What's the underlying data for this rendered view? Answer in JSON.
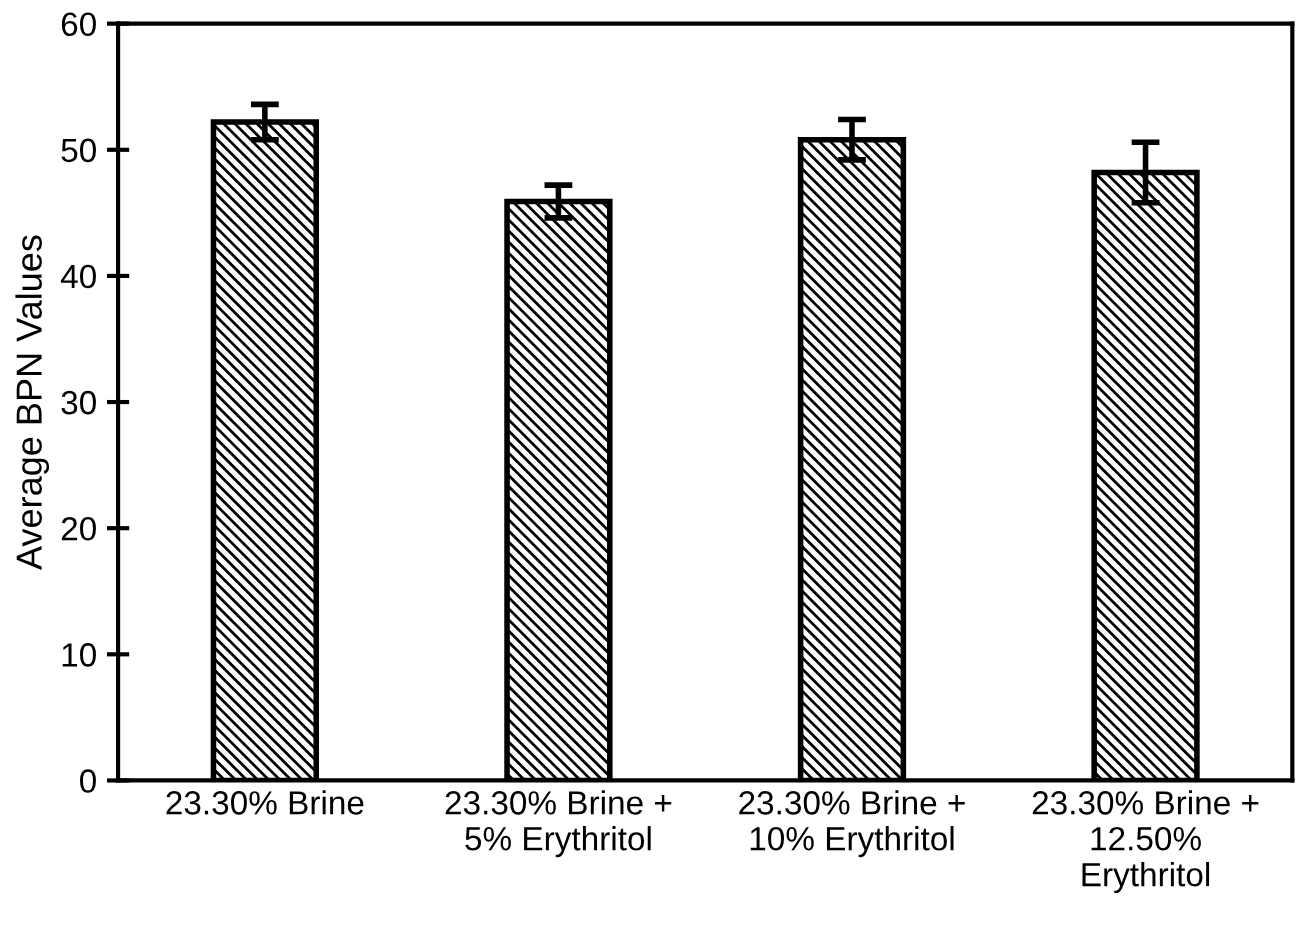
{
  "chart_data": {
    "type": "bar",
    "ylabel": "Average BPN Values",
    "categories": [
      "23.30% Brine",
      "23.30% Brine +\n5% Erythritol",
      "23.30% Brine +\n10% Erythritol",
      "23.30% Brine +\n12.50%\nErythritol"
    ],
    "values": [
      52.2,
      45.9,
      50.8,
      48.2
    ],
    "errors": [
      1.4,
      1.3,
      1.6,
      2.4
    ],
    "color": "#000000",
    "ylim": [
      0,
      60
    ],
    "yticks": [
      0,
      10,
      20,
      30,
      40,
      50,
      60
    ],
    "grid": false,
    "legend": false
  }
}
